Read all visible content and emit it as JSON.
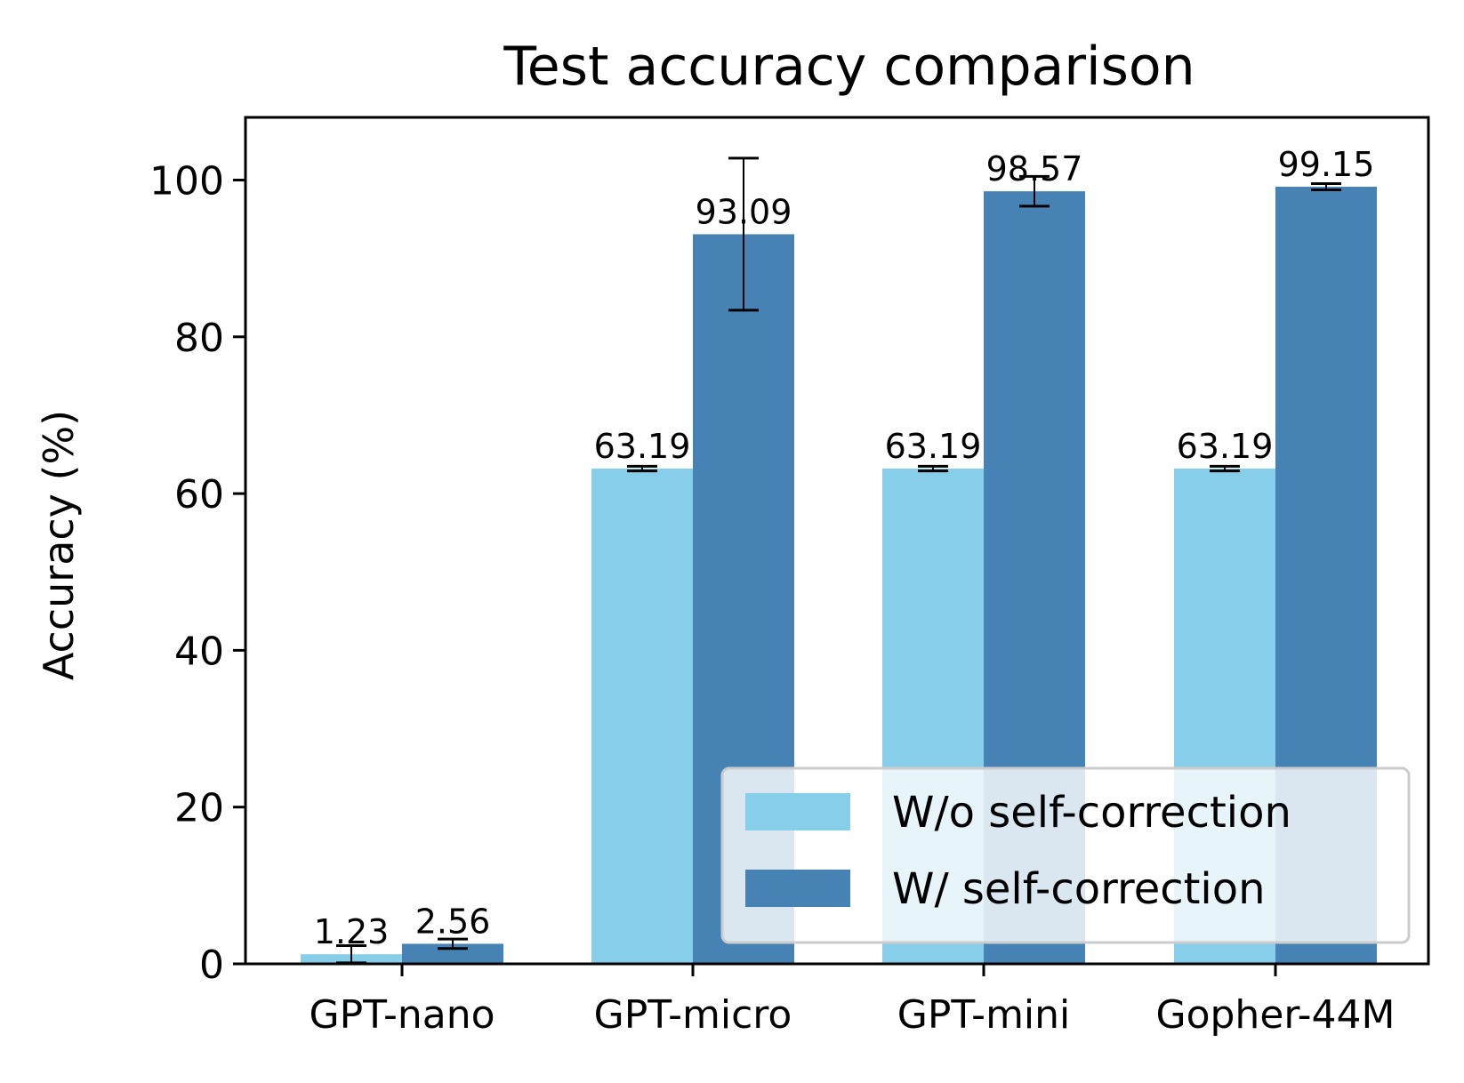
{
  "chart_data": {
    "type": "bar",
    "title": "Test accuracy comparison",
    "xlabel": "",
    "ylabel": "Accuracy (%)",
    "ylim": [
      0,
      108
    ],
    "yticks": [
      0,
      20,
      40,
      60,
      80,
      100
    ],
    "categories": [
      "GPT-nano",
      "GPT-micro",
      "GPT-mini",
      "Gopher-44M"
    ],
    "series": [
      {
        "name": "W/o self-correction",
        "color": "#87CEEB",
        "values": [
          1.23,
          63.19,
          63.19,
          63.19
        ],
        "labels": [
          "1.23",
          "63.19",
          "63.19",
          "63.19"
        ],
        "error": [
          1.1,
          0.3,
          0.3,
          0.3
        ]
      },
      {
        "name": "W/ self-correction",
        "color": "#4682B4",
        "values": [
          2.56,
          93.09,
          98.57,
          99.15
        ],
        "labels": [
          "2.56",
          "93.09",
          "98.57",
          "99.15"
        ],
        "error": [
          0.6,
          9.7,
          1.9,
          0.4
        ]
      }
    ],
    "grid": false,
    "legend": "lower-right"
  }
}
